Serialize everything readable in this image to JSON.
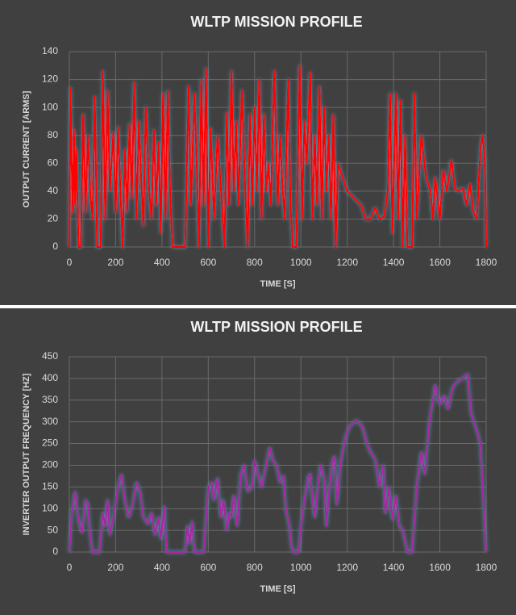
{
  "chart_data": [
    {
      "type": "line",
      "title": "WLTP MISSION PROFILE",
      "x_label": "TIME [S]",
      "y_label": "OUTPUT CURRENT [ARMS]",
      "color": "#ff0000",
      "grid": true,
      "xlim": [
        0,
        1800
      ],
      "ylim": [
        0,
        140
      ],
      "xticks": [
        0,
        200,
        400,
        600,
        800,
        1000,
        1200,
        1400,
        1600,
        1800
      ],
      "yticks": [
        0,
        20,
        40,
        60,
        80,
        100,
        120,
        140
      ],
      "x": [
        0,
        5,
        10,
        15,
        20,
        25,
        30,
        40,
        50,
        60,
        70,
        80,
        90,
        100,
        110,
        120,
        135,
        145,
        155,
        165,
        175,
        190,
        200,
        210,
        220,
        230,
        240,
        250,
        260,
        270,
        280,
        290,
        300,
        310,
        320,
        330,
        345,
        355,
        365,
        375,
        385,
        395,
        405,
        415,
        425,
        435,
        445,
        460,
        500,
        515,
        525,
        540,
        550,
        560,
        570,
        580,
        590,
        600,
        610,
        625,
        640,
        655,
        670,
        680,
        690,
        700,
        710,
        720,
        730,
        745,
        760,
        770,
        780,
        790,
        800,
        810,
        820,
        830,
        840,
        850,
        860,
        870,
        885,
        900,
        910,
        920,
        930,
        945,
        955,
        965,
        980,
        995,
        1005,
        1015,
        1025,
        1040,
        1050,
        1060,
        1070,
        1080,
        1090,
        1100,
        1110,
        1120,
        1130,
        1140,
        1150,
        1160,
        1180,
        1200,
        1230,
        1260,
        1280,
        1300,
        1320,
        1340,
        1360,
        1375,
        1385,
        1395,
        1410,
        1420,
        1430,
        1440,
        1450,
        1460,
        1480,
        1490,
        1500,
        1520,
        1540,
        1560,
        1570,
        1580,
        1600,
        1615,
        1630,
        1650,
        1665,
        1680,
        1700,
        1715,
        1730,
        1745,
        1760,
        1775,
        1785,
        1795,
        1800
      ],
      "values": [
        0,
        114,
        60,
        25,
        84,
        30,
        70,
        0,
        0,
        95,
        25,
        80,
        40,
        20,
        108,
        0,
        0,
        126,
        20,
        112,
        40,
        82,
        25,
        86,
        43,
        0,
        70,
        25,
        88,
        35,
        118,
        20,
        90,
        50,
        15,
        100,
        40,
        20,
        84,
        30,
        75,
        10,
        110,
        20,
        112,
        40,
        0,
        0,
        0,
        115,
        30,
        110,
        60,
        0,
        120,
        30,
        128,
        0,
        85,
        20,
        80,
        40,
        0,
        96,
        30,
        126,
        40,
        90,
        30,
        112,
        40,
        0,
        95,
        30,
        100,
        40,
        120,
        20,
        95,
        40,
        60,
        30,
        126,
        30,
        80,
        45,
        20,
        120,
        30,
        0,
        0,
        130,
        20,
        90,
        60,
        125,
        20,
        80,
        30,
        115,
        20,
        100,
        40,
        80,
        20,
        95,
        0,
        60,
        50,
        40,
        35,
        30,
        20,
        20,
        28,
        20,
        22,
        40,
        110,
        10,
        110,
        20,
        105,
        0,
        80,
        0,
        0,
        110,
        20,
        80,
        50,
        40,
        20,
        50,
        20,
        55,
        40,
        62,
        42,
        40,
        42,
        30,
        45,
        25,
        20,
        70,
        80,
        60,
        0
      ]
    },
    {
      "type": "line",
      "title": "WLTP MISSION PROFILE",
      "x_label": "TIME [S]",
      "y_label": "INVERTER OUTPUT FREQUENCY [HZ]",
      "color": "#a626a4",
      "grid": true,
      "xlim": [
        0,
        1800
      ],
      "ylim": [
        0,
        450
      ],
      "xticks": [
        0,
        200,
        400,
        600,
        800,
        1000,
        1200,
        1400,
        1600,
        1800
      ],
      "yticks": [
        0,
        50,
        100,
        150,
        200,
        250,
        300,
        350,
        400,
        450
      ],
      "x": [
        0,
        10,
        25,
        40,
        55,
        70,
        80,
        90,
        100,
        130,
        145,
        155,
        165,
        175,
        190,
        210,
        225,
        240,
        255,
        270,
        290,
        305,
        320,
        340,
        355,
        370,
        385,
        395,
        410,
        420,
        440,
        500,
        510,
        520,
        530,
        540,
        580,
        600,
        615,
        625,
        640,
        655,
        665,
        680,
        690,
        700,
        710,
        725,
        740,
        755,
        770,
        790,
        800,
        815,
        830,
        850,
        865,
        880,
        895,
        910,
        925,
        935,
        950,
        960,
        970,
        990,
        1000,
        1015,
        1030,
        1040,
        1050,
        1060,
        1075,
        1085,
        1100,
        1110,
        1120,
        1135,
        1145,
        1155,
        1170,
        1190,
        1210,
        1240,
        1265,
        1285,
        1300,
        1320,
        1340,
        1355,
        1365,
        1380,
        1395,
        1410,
        1425,
        1440,
        1460,
        1480,
        1500,
        1520,
        1535,
        1555,
        1580,
        1600,
        1620,
        1635,
        1655,
        1680,
        1700,
        1720,
        1735,
        1760,
        1775,
        1790,
        1800
      ],
      "values": [
        0,
        90,
        138,
        70,
        45,
        120,
        110,
        40,
        0,
        0,
        90,
        60,
        120,
        40,
        80,
        150,
        178,
        120,
        80,
        100,
        160,
        140,
        80,
        65,
        90,
        40,
        80,
        30,
        105,
        0,
        0,
        0,
        60,
        20,
        70,
        0,
        0,
        150,
        160,
        120,
        170,
        80,
        120,
        50,
        90,
        80,
        130,
        60,
        180,
        200,
        140,
        150,
        210,
        180,
        150,
        200,
        240,
        210,
        200,
        160,
        175,
        100,
        60,
        10,
        0,
        0,
        60,
        120,
        170,
        180,
        120,
        80,
        160,
        200,
        170,
        60,
        130,
        205,
        220,
        110,
        200,
        260,
        290,
        303,
        290,
        250,
        230,
        215,
        150,
        200,
        90,
        150,
        75,
        130,
        60,
        50,
        0,
        0,
        150,
        230,
        180,
        300,
        385,
        340,
        360,
        330,
        380,
        395,
        400,
        410,
        320,
        280,
        250,
        100,
        0
      ]
    }
  ]
}
